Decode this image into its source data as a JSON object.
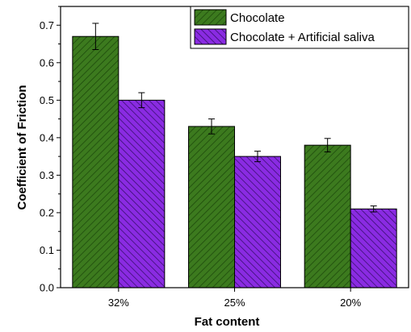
{
  "chart_data": {
    "type": "bar",
    "title": "",
    "xlabel": "Fat content",
    "ylabel": "Coefficient of Friction",
    "categories": [
      "32%",
      "25%",
      "20%"
    ],
    "ylim": [
      0,
      0.75
    ],
    "yticks": [
      "0.0",
      "0.1",
      "0.2",
      "0.3",
      "0.4",
      "0.5",
      "0.6",
      "0.7"
    ],
    "grid": false,
    "legend_position": "top-right",
    "series": [
      {
        "name": "Chocolate",
        "values": [
          0.67,
          0.43,
          0.38
        ],
        "errors": [
          0.035,
          0.02,
          0.018
        ],
        "color": "#3c7a1e",
        "hatch_color": "#1e4a0c"
      },
      {
        "name": "Chocolate + Artificial saliva",
        "values": [
          0.5,
          0.35,
          0.21
        ],
        "errors": [
          0.02,
          0.014,
          0.008
        ],
        "color": "#8a2be2",
        "hatch_color": "#3a1070"
      }
    ]
  }
}
